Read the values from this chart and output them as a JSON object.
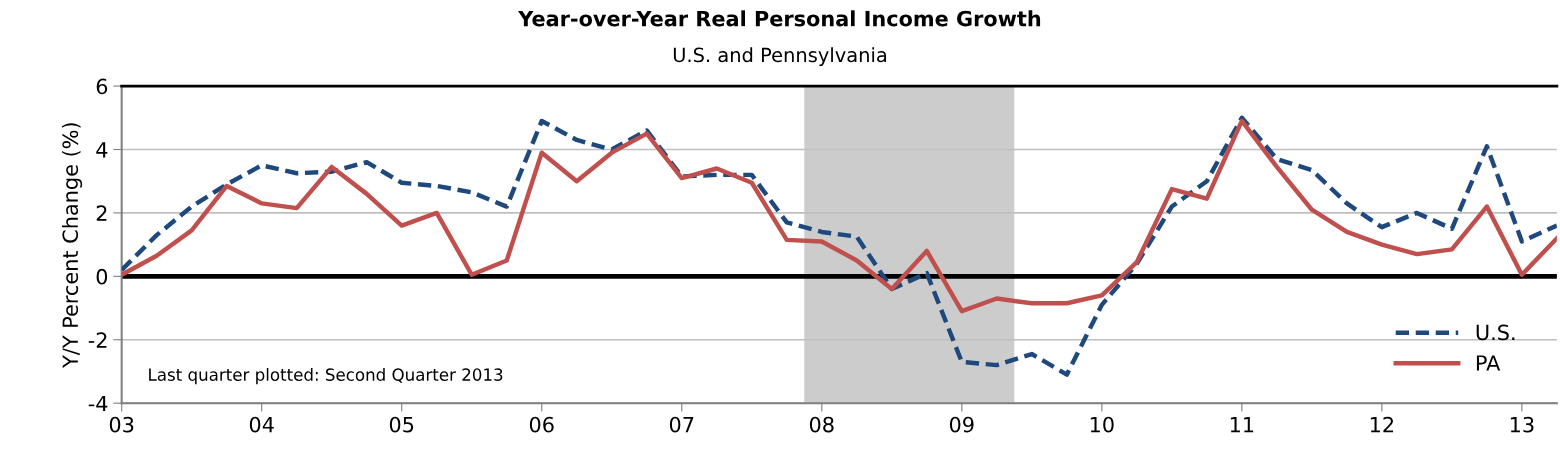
{
  "chart_data": {
    "type": "line",
    "title": "Year-over-Year Real Personal Income Growth",
    "subtitle": "U.S. and Pennsylvania",
    "ylabel": "Y/Y Percent Change (%)",
    "x": [
      2003,
      2003.25,
      2003.5,
      2003.75,
      2004,
      2004.25,
      2004.5,
      2004.75,
      2005,
      2005.25,
      2005.5,
      2005.75,
      2006,
      2006.25,
      2006.5,
      2006.75,
      2007,
      2007.25,
      2007.5,
      2007.75,
      2008,
      2008.25,
      2008.5,
      2008.75,
      2009,
      2009.25,
      2009.5,
      2009.75,
      2010,
      2010.25,
      2010.5,
      2010.75,
      2011,
      2011.25,
      2011.5,
      2011.75,
      2012,
      2012.25,
      2012.5,
      2012.75,
      2013,
      2013.25
    ],
    "series": [
      {
        "name": "U.S.",
        "color": "#1f497d",
        "line_style": "dashed",
        "values": [
          0.2,
          1.3,
          2.2,
          2.9,
          3.5,
          3.25,
          3.3,
          3.6,
          2.95,
          2.85,
          2.65,
          2.2,
          4.9,
          4.3,
          4.0,
          4.6,
          3.15,
          3.2,
          3.2,
          1.7,
          1.4,
          1.25,
          -0.4,
          0.1,
          -2.7,
          -2.8,
          -2.45,
          -3.1,
          -0.9,
          0.4,
          2.2,
          3.0,
          5.0,
          3.7,
          3.35,
          2.3,
          1.55,
          2.0,
          1.5,
          4.1,
          1.1,
          1.6
        ]
      },
      {
        "name": "PA",
        "color": "#c0504d",
        "line_style": "solid",
        "values": [
          0.05,
          0.65,
          1.45,
          2.85,
          2.3,
          2.15,
          3.45,
          2.6,
          1.6,
          2.0,
          0.05,
          0.5,
          3.9,
          3.0,
          3.9,
          4.5,
          3.1,
          3.4,
          2.95,
          1.15,
          1.1,
          0.5,
          -0.4,
          0.8,
          -1.1,
          -0.7,
          -0.85,
          -0.85,
          -0.6,
          0.45,
          2.75,
          2.45,
          4.9,
          3.45,
          2.1,
          1.4,
          1.0,
          0.7,
          0.85,
          2.2,
          0.05,
          1.2
        ]
      }
    ],
    "xlim": [
      2003,
      2013.25
    ],
    "xticks": [
      {
        "value": 2003,
        "label": "03"
      },
      {
        "value": 2004,
        "label": "04"
      },
      {
        "value": 2005,
        "label": "05"
      },
      {
        "value": 2006,
        "label": "06"
      },
      {
        "value": 2007,
        "label": "07"
      },
      {
        "value": 2008,
        "label": "08"
      },
      {
        "value": 2009,
        "label": "09"
      },
      {
        "value": 2010,
        "label": "10"
      },
      {
        "value": 2011,
        "label": "11"
      },
      {
        "value": 2012,
        "label": "12"
      },
      {
        "value": 2013,
        "label": "13"
      }
    ],
    "ylim": [
      -4,
      6
    ],
    "yticks": [
      -4,
      -2,
      0,
      2,
      4,
      6
    ],
    "ref_lines": [
      {
        "axis": "y",
        "value": 0,
        "label": null,
        "color": "#000000"
      }
    ],
    "bands": [
      {
        "axis": "x",
        "from": 2007.875,
        "to": 2009.375,
        "label": null,
        "color": "#cccccc"
      }
    ],
    "annotations": [
      "Last quarter plotted: Second Quarter 2013"
    ],
    "grid": "y",
    "legend": "lower right",
    "marker": "none"
  }
}
